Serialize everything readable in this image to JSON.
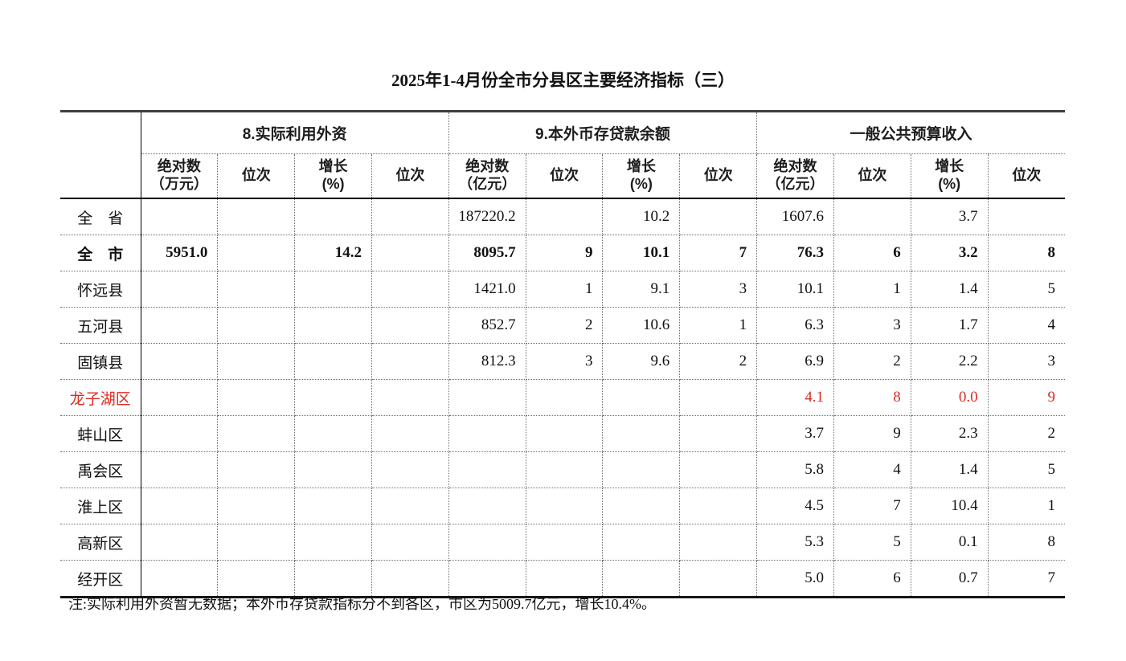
{
  "page": {
    "title": "2025年1-4月份全市分县区主要经济指标（三）",
    "note": "注:实际利用外资暂无数据；本外币存贷款指标分不到各区，市区为5009.7亿元，增长10.4%。"
  },
  "colors": {
    "accent_red": "#dd2b22",
    "text": "#111111",
    "solid_border": "#000000",
    "dotted_border": "#6e6e6e"
  },
  "table": {
    "corner_label": "",
    "groups": [
      {
        "label": "8.实际利用外资",
        "span": 4
      },
      {
        "label": "9.本外币存贷款余额",
        "span": 4
      },
      {
        "label": "一般公共预算收入",
        "span": 4
      }
    ],
    "subheaders": [
      {
        "top": "绝对数",
        "bottom": "（万元）"
      },
      {
        "top": "位次",
        "bottom": ""
      },
      {
        "top": "增长",
        "bottom": "(%)"
      },
      {
        "top": "位次",
        "bottom": ""
      },
      {
        "top": "绝对数",
        "bottom": "（亿元）"
      },
      {
        "top": "位次",
        "bottom": ""
      },
      {
        "top": "增长",
        "bottom": "(%)"
      },
      {
        "top": "位次",
        "bottom": ""
      },
      {
        "top": "绝对数",
        "bottom": "（亿元）"
      },
      {
        "top": "位次",
        "bottom": ""
      },
      {
        "top": "增长",
        "bottom": "(%)"
      },
      {
        "top": "位次",
        "bottom": ""
      }
    ],
    "rows": [
      {
        "label": "全　省",
        "bold": false,
        "red": false,
        "cells": [
          "",
          "",
          "",
          "",
          "187220.2",
          "",
          "10.2",
          "",
          "1607.6",
          "",
          "3.7",
          ""
        ]
      },
      {
        "label": "全　市",
        "bold": true,
        "red": false,
        "cells": [
          "5951.0",
          "",
          "14.2",
          "",
          "8095.7",
          "9",
          "10.1",
          "7",
          "76.3",
          "6",
          "3.2",
          "8"
        ]
      },
      {
        "label": "怀远县",
        "bold": false,
        "red": false,
        "cells": [
          "",
          "",
          "",
          "",
          "1421.0",
          "1",
          "9.1",
          "3",
          "10.1",
          "1",
          "1.4",
          "5"
        ]
      },
      {
        "label": "五河县",
        "bold": false,
        "red": false,
        "cells": [
          "",
          "",
          "",
          "",
          "852.7",
          "2",
          "10.6",
          "1",
          "6.3",
          "3",
          "1.7",
          "4"
        ]
      },
      {
        "label": "固镇县",
        "bold": false,
        "red": false,
        "cells": [
          "",
          "",
          "",
          "",
          "812.3",
          "3",
          "9.6",
          "2",
          "6.9",
          "2",
          "2.2",
          "3"
        ]
      },
      {
        "label": "龙子湖区",
        "bold": false,
        "red": true,
        "cells": [
          "",
          "",
          "",
          "",
          "",
          "",
          "",
          "",
          "4.1",
          "8",
          "0.0",
          "9"
        ]
      },
      {
        "label": "蚌山区",
        "bold": false,
        "red": false,
        "cells": [
          "",
          "",
          "",
          "",
          "",
          "",
          "",
          "",
          "3.7",
          "9",
          "2.3",
          "2"
        ]
      },
      {
        "label": "禹会区",
        "bold": false,
        "red": false,
        "cells": [
          "",
          "",
          "",
          "",
          "",
          "",
          "",
          "",
          "5.8",
          "4",
          "1.4",
          "5"
        ]
      },
      {
        "label": "淮上区",
        "bold": false,
        "red": false,
        "cells": [
          "",
          "",
          "",
          "",
          "",
          "",
          "",
          "",
          "4.5",
          "7",
          "10.4",
          "1"
        ]
      },
      {
        "label": "高新区",
        "bold": false,
        "red": false,
        "cells": [
          "",
          "",
          "",
          "",
          "",
          "",
          "",
          "",
          "5.3",
          "5",
          "0.1",
          "8"
        ]
      },
      {
        "label": "经开区",
        "bold": false,
        "red": false,
        "cells": [
          "",
          "",
          "",
          "",
          "",
          "",
          "",
          "",
          "5.0",
          "6",
          "0.7",
          "7"
        ]
      }
    ]
  }
}
